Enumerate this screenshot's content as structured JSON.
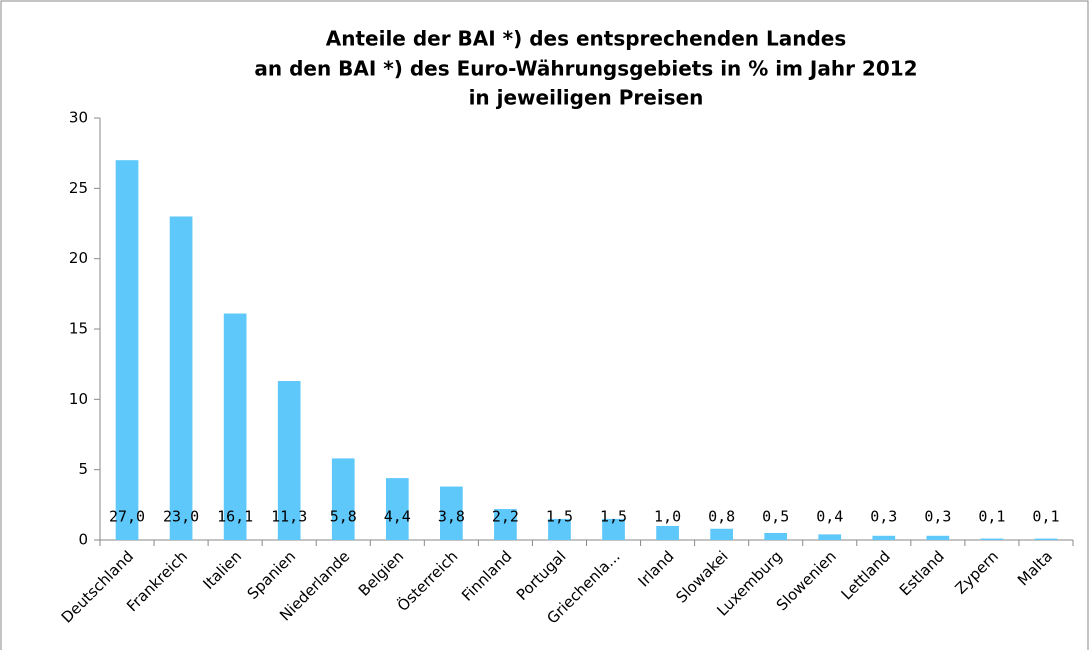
{
  "chart_data": {
    "type": "bar",
    "title": [
      "Anteile der BAI *) des entsprechenden Landes",
      "an den BAI *) des Euro-Währungsgebiets in % im Jahr 2012",
      "in jeweiligen Preisen"
    ],
    "categories": [
      "Deutschland",
      "Frankreich",
      "Italien",
      "Spanien",
      "Niederlande",
      "Belgien",
      "Österreich",
      "Finnland",
      "Portugal",
      "Griechenla...",
      "Irland",
      "Slowakei",
      "Luxemburg",
      "Slowenien",
      "Lettland",
      "Estland",
      "Zypern",
      "Malta"
    ],
    "values": [
      27.0,
      23.0,
      16.1,
      11.3,
      5.8,
      4.4,
      3.8,
      2.2,
      1.5,
      1.5,
      1.0,
      0.8,
      0.5,
      0.4,
      0.3,
      0.3,
      0.1,
      0.1
    ],
    "value_labels": [
      "27,0",
      "23,0",
      "16,1",
      "11,3",
      "5,8",
      "4,4",
      "3,8",
      "2,2",
      "1,5",
      "1,5",
      "1,0",
      "0,8",
      "0,5",
      "0,4",
      "0,3",
      "0,3",
      "0,1",
      "0,1"
    ],
    "color": "#5ec8fa",
    "ylim": [
      0,
      30
    ],
    "yticks": [
      0,
      5,
      10,
      15,
      20,
      25,
      30
    ],
    "grid": false
  }
}
